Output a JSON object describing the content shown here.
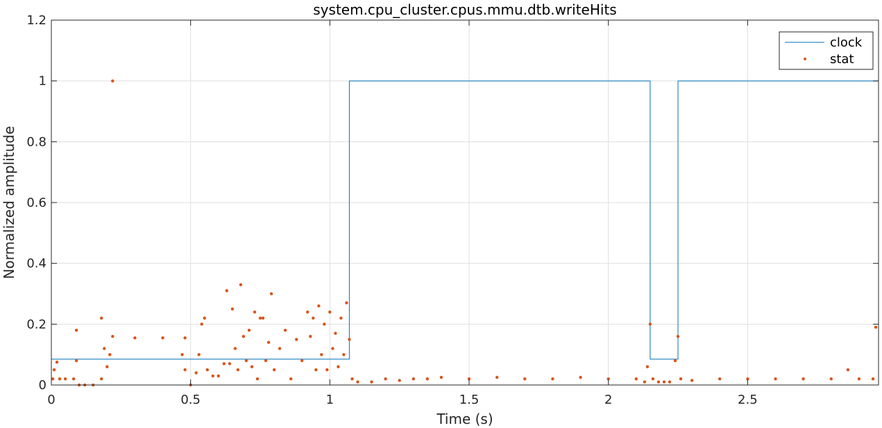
{
  "chart_data": {
    "type": "line",
    "title": "system.cpu_cluster.cpus.mmu.dtb.writeHits",
    "xlabel": "Time (s)",
    "ylabel": "Normalized amplitude",
    "xlim": [
      0,
      2.97
    ],
    "ylim": [
      0,
      1.2
    ],
    "xticks": [
      0,
      0.5,
      1,
      1.5,
      2,
      2.5
    ],
    "xtick_labels": [
      "0",
      "0.5",
      "1",
      "1.5",
      "2",
      "2.5"
    ],
    "yticks": [
      0,
      0.2,
      0.4,
      0.6,
      0.8,
      1,
      1.2
    ],
    "ytick_labels": [
      "0",
      "0.2",
      "0.4",
      "0.6",
      "0.8",
      "1",
      "1.2"
    ],
    "grid": true,
    "legend": {
      "position": "top-right",
      "entries": [
        "clock",
        "stat"
      ]
    },
    "colors": {
      "clock": "#0072BD",
      "stat": "#D95319"
    },
    "series": [
      {
        "name": "clock",
        "style": "line",
        "points": [
          [
            0,
            0.085
          ],
          [
            1.07,
            0.085
          ],
          [
            1.07,
            1
          ],
          [
            2.15,
            1
          ],
          [
            2.15,
            0.085
          ],
          [
            2.25,
            0.085
          ],
          [
            2.25,
            1
          ],
          [
            2.97,
            1
          ]
        ]
      },
      {
        "name": "stat",
        "style": "dots",
        "points": [
          [
            0.005,
            0.02
          ],
          [
            0.01,
            0.05
          ],
          [
            0.02,
            0.075
          ],
          [
            0.03,
            0.02
          ],
          [
            0.05,
            0.02
          ],
          [
            0.08,
            0.02
          ],
          [
            0.09,
            0.08
          ],
          [
            0.09,
            0.18
          ],
          [
            0.1,
            0.0
          ],
          [
            0.12,
            0.0
          ],
          [
            0.15,
            0.0
          ],
          [
            0.18,
            0.02
          ],
          [
            0.18,
            0.22
          ],
          [
            0.19,
            0.12
          ],
          [
            0.2,
            0.06
          ],
          [
            0.21,
            0.1
          ],
          [
            0.22,
            1.0
          ],
          [
            0.22,
            0.16
          ],
          [
            0.3,
            0.155
          ],
          [
            0.4,
            0.155
          ],
          [
            0.48,
            0.155
          ],
          [
            0.47,
            0.1
          ],
          [
            0.48,
            0.05
          ],
          [
            0.5,
            0.0
          ],
          [
            0.52,
            0.04
          ],
          [
            0.53,
            0.1
          ],
          [
            0.54,
            0.2
          ],
          [
            0.55,
            0.22
          ],
          [
            0.56,
            0.05
          ],
          [
            0.58,
            0.03
          ],
          [
            0.6,
            0.03
          ],
          [
            0.62,
            0.07
          ],
          [
            0.63,
            0.31
          ],
          [
            0.64,
            0.07
          ],
          [
            0.65,
            0.25
          ],
          [
            0.66,
            0.12
          ],
          [
            0.67,
            0.05
          ],
          [
            0.68,
            0.33
          ],
          [
            0.69,
            0.16
          ],
          [
            0.7,
            0.08
          ],
          [
            0.71,
            0.18
          ],
          [
            0.72,
            0.06
          ],
          [
            0.73,
            0.24
          ],
          [
            0.74,
            0.02
          ],
          [
            0.75,
            0.22
          ],
          [
            0.76,
            0.22
          ],
          [
            0.77,
            0.08
          ],
          [
            0.78,
            0.14
          ],
          [
            0.79,
            0.3
          ],
          [
            0.8,
            0.05
          ],
          [
            0.82,
            0.12
          ],
          [
            0.84,
            0.18
          ],
          [
            0.86,
            0.02
          ],
          [
            0.88,
            0.15
          ],
          [
            0.9,
            0.08
          ],
          [
            0.92,
            0.24
          ],
          [
            0.93,
            0.16
          ],
          [
            0.94,
            0.22
          ],
          [
            0.95,
            0.05
          ],
          [
            0.96,
            0.26
          ],
          [
            0.97,
            0.1
          ],
          [
            0.98,
            0.2
          ],
          [
            0.99,
            0.05
          ],
          [
            1.0,
            0.24
          ],
          [
            1.01,
            0.12
          ],
          [
            1.02,
            0.17
          ],
          [
            1.03,
            0.06
          ],
          [
            1.04,
            0.22
          ],
          [
            1.05,
            0.1
          ],
          [
            1.06,
            0.27
          ],
          [
            1.07,
            0.15
          ],
          [
            1.08,
            0.02
          ],
          [
            1.1,
            0.01
          ],
          [
            1.15,
            0.01
          ],
          [
            1.2,
            0.02
          ],
          [
            1.25,
            0.015
          ],
          [
            1.3,
            0.02
          ],
          [
            1.35,
            0.02
          ],
          [
            1.4,
            0.025
          ],
          [
            1.5,
            0.02
          ],
          [
            1.6,
            0.025
          ],
          [
            1.7,
            0.02
          ],
          [
            1.8,
            0.02
          ],
          [
            1.9,
            0.025
          ],
          [
            2.0,
            0.02
          ],
          [
            2.1,
            0.02
          ],
          [
            2.13,
            0.01
          ],
          [
            2.14,
            0.06
          ],
          [
            2.15,
            0.2
          ],
          [
            2.16,
            0.02
          ],
          [
            2.18,
            0.01
          ],
          [
            2.2,
            0.01
          ],
          [
            2.22,
            0.01
          ],
          [
            2.24,
            0.08
          ],
          [
            2.25,
            0.16
          ],
          [
            2.26,
            0.02
          ],
          [
            2.3,
            0.015
          ],
          [
            2.4,
            0.02
          ],
          [
            2.5,
            0.02
          ],
          [
            2.6,
            0.02
          ],
          [
            2.7,
            0.02
          ],
          [
            2.8,
            0.02
          ],
          [
            2.86,
            0.05
          ],
          [
            2.9,
            0.02
          ],
          [
            2.95,
            0.02
          ],
          [
            2.96,
            0.19
          ]
        ]
      }
    ]
  }
}
